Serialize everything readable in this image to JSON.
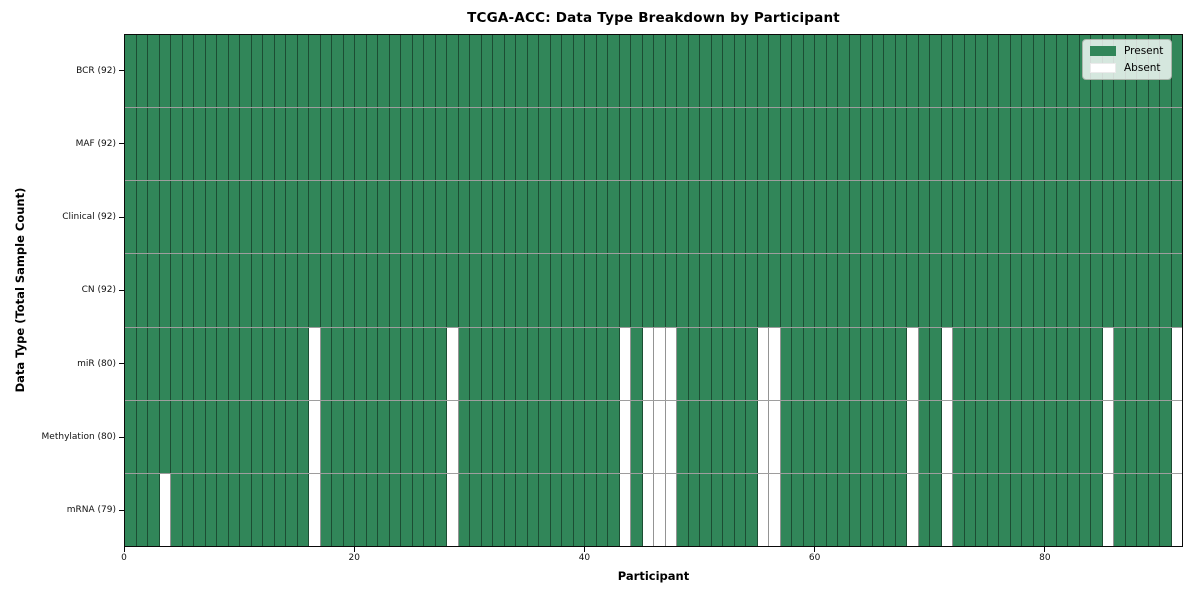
{
  "chart_data": {
    "type": "heatmap",
    "title": "TCGA-ACC: Data Type Breakdown by Participant",
    "xlabel": "Participant",
    "ylabel": "Data Type (Total Sample Count)",
    "n_participants": 92,
    "x_ticks": [
      0,
      20,
      40,
      60,
      80
    ],
    "grid": "cell-borders-on",
    "colors": {
      "present": "#318659",
      "absent": "#ffffff"
    },
    "legend": {
      "position": "upper right",
      "entries": [
        {
          "label": "Present",
          "color_key": "present"
        },
        {
          "label": "Absent",
          "color_key": "absent"
        }
      ]
    },
    "rows": [
      {
        "label": "BCR (92)",
        "data_type": "BCR",
        "total_samples": 92,
        "absent_participant_indices": []
      },
      {
        "label": "MAF (92)",
        "data_type": "MAF",
        "total_samples": 92,
        "absent_participant_indices": []
      },
      {
        "label": "Clinical (92)",
        "data_type": "Clinical",
        "total_samples": 92,
        "absent_participant_indices": []
      },
      {
        "label": "CN (92)",
        "data_type": "CN",
        "total_samples": 92,
        "absent_participant_indices": []
      },
      {
        "label": "miR (80)",
        "data_type": "miR",
        "total_samples": 80,
        "absent_participant_indices": [
          16,
          28,
          43,
          45,
          46,
          47,
          55,
          56,
          68,
          71,
          85,
          91
        ]
      },
      {
        "label": "Methylation (80)",
        "data_type": "Methylation",
        "total_samples": 80,
        "absent_participant_indices": [
          16,
          28,
          43,
          45,
          46,
          47,
          55,
          56,
          68,
          71,
          85,
          91
        ]
      },
      {
        "label": "mRNA (79)",
        "data_type": "mRNA",
        "total_samples": 79,
        "absent_participant_indices": [
          3,
          16,
          28,
          43,
          45,
          46,
          47,
          55,
          56,
          68,
          71,
          85,
          91
        ]
      }
    ]
  }
}
